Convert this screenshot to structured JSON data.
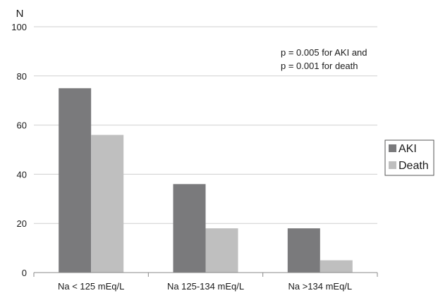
{
  "chart_data": {
    "type": "bar",
    "title": "",
    "xlabel": "",
    "ylabel": "N",
    "ylim": [
      0,
      100
    ],
    "yticks": [
      0,
      20,
      40,
      60,
      80,
      100
    ],
    "grid": true,
    "legend_position": "right",
    "categories": [
      "Na < 125 mEq/L",
      "Na 125-134 mEq/L",
      "Na >134 mEq/L"
    ],
    "series": [
      {
        "name": "AKI",
        "values": [
          75,
          36,
          18
        ],
        "color": "#7a7a7c"
      },
      {
        "name": "Death",
        "values": [
          56,
          18,
          5
        ],
        "color": "#bfbfbf"
      }
    ],
    "annotation": [
      "p = 0.005 for AKI and",
      "p = 0.001 for death"
    ]
  }
}
